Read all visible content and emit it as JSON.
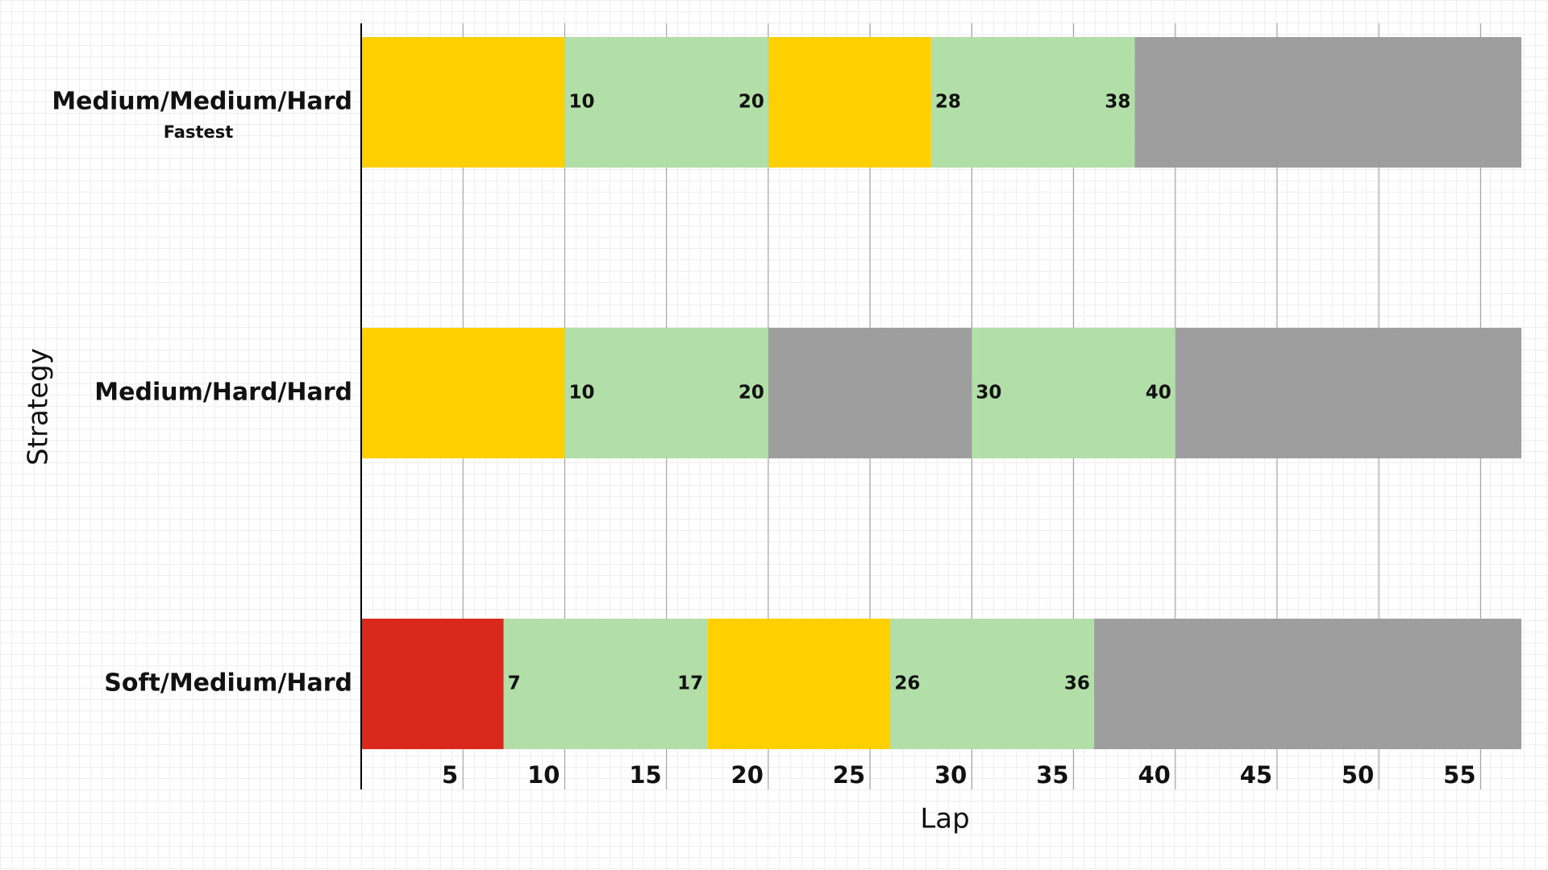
{
  "chart_data": {
    "type": "gantt",
    "xlabel": "Lap",
    "ylabel": "Strategy",
    "xlim": [
      0,
      57
    ],
    "xticks": [
      5,
      10,
      15,
      20,
      25,
      30,
      35,
      40,
      45,
      50,
      55
    ],
    "grid": true,
    "pit_window_color": "#B2DFA8",
    "rows": [
      {
        "label": "Medium/Medium/Hard",
        "note": "Fastest",
        "stints": [
          {
            "start": 0,
            "end": 10,
            "color": "#FFD000"
          },
          {
            "start": 20,
            "end": 28,
            "color": "#FFD000"
          },
          {
            "start": 38,
            "end": 57,
            "color": "#9E9E9E"
          }
        ],
        "pit_windows": [
          {
            "start": 10,
            "end": 20
          },
          {
            "start": 28,
            "end": 38
          }
        ]
      },
      {
        "label": "Medium/Hard/Hard",
        "stints": [
          {
            "start": 0,
            "end": 10,
            "color": "#FFD000"
          },
          {
            "start": 20,
            "end": 30,
            "color": "#9E9E9E"
          },
          {
            "start": 40,
            "end": 57,
            "color": "#9E9E9E"
          }
        ],
        "pit_windows": [
          {
            "start": 10,
            "end": 20
          },
          {
            "start": 30,
            "end": 40
          }
        ]
      },
      {
        "label": "Soft/Medium/Hard",
        "stints": [
          {
            "start": 0,
            "end": 7,
            "color": "#DA291C"
          },
          {
            "start": 17,
            "end": 26,
            "color": "#FFD000"
          },
          {
            "start": 36,
            "end": 57,
            "color": "#9E9E9E"
          }
        ],
        "pit_windows": [
          {
            "start": 7,
            "end": 17
          },
          {
            "start": 26,
            "end": 36
          }
        ]
      }
    ]
  }
}
